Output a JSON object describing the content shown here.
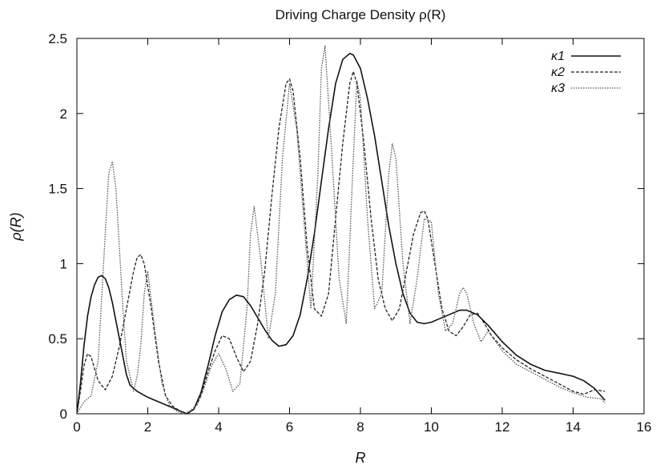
{
  "chart_data": {
    "type": "line",
    "title": "Driving Charge Density ρ(R)",
    "xlabel": "R",
    "ylabel": "ρ(R)",
    "xlim": [
      0,
      16
    ],
    "ylim": [
      0,
      2.5
    ],
    "xticks": [
      "0",
      "2",
      "4",
      "6",
      "8",
      "10",
      "12",
      "14",
      "16"
    ],
    "yticks": [
      "0",
      "0.5",
      "1",
      "1.5",
      "2",
      "2.5"
    ],
    "grid": false,
    "legend_position": "top-right",
    "series": [
      {
        "name": "κ1",
        "style": "solid",
        "color": "#111111",
        "x": [
          0,
          0.1,
          0.2,
          0.3,
          0.4,
          0.5,
          0.6,
          0.7,
          0.8,
          0.9,
          1.0,
          1.1,
          1.2,
          1.3,
          1.4,
          1.5,
          1.7,
          2.0,
          2.3,
          2.6,
          2.9,
          3.1,
          3.3,
          3.5,
          3.7,
          3.9,
          4.1,
          4.3,
          4.5,
          4.7,
          4.9,
          5.1,
          5.3,
          5.5,
          5.7,
          5.9,
          6.1,
          6.3,
          6.5,
          6.7,
          6.9,
          7.1,
          7.3,
          7.5,
          7.7,
          7.8,
          8.0,
          8.2,
          8.4,
          8.6,
          8.8,
          9.0,
          9.2,
          9.4,
          9.6,
          9.8,
          10.0,
          10.2,
          10.5,
          10.8,
          11.0,
          11.3,
          11.6,
          12.0,
          12.4,
          12.8,
          13.2,
          13.6,
          14.0,
          14.3,
          14.6,
          14.9
        ],
        "y": [
          0,
          0.2,
          0.45,
          0.65,
          0.78,
          0.86,
          0.91,
          0.92,
          0.9,
          0.84,
          0.74,
          0.62,
          0.5,
          0.38,
          0.26,
          0.19,
          0.15,
          0.11,
          0.08,
          0.05,
          0.02,
          0.0,
          0.03,
          0.14,
          0.32,
          0.52,
          0.68,
          0.76,
          0.79,
          0.78,
          0.72,
          0.64,
          0.56,
          0.49,
          0.45,
          0.46,
          0.52,
          0.66,
          0.9,
          1.2,
          1.55,
          1.9,
          2.2,
          2.36,
          2.4,
          2.39,
          2.3,
          2.1,
          1.85,
          1.55,
          1.25,
          1.0,
          0.8,
          0.67,
          0.61,
          0.6,
          0.61,
          0.63,
          0.66,
          0.69,
          0.69,
          0.66,
          0.59,
          0.48,
          0.39,
          0.33,
          0.29,
          0.27,
          0.25,
          0.22,
          0.17,
          0.09
        ]
      },
      {
        "name": "κ2",
        "style": "dashed",
        "color": "#222222",
        "x": [
          0,
          0.1,
          0.2,
          0.3,
          0.4,
          0.6,
          0.8,
          1.0,
          1.2,
          1.4,
          1.6,
          1.7,
          1.8,
          1.9,
          2.1,
          2.3,
          2.5,
          2.7,
          2.9,
          3.1,
          3.3,
          3.5,
          3.7,
          3.9,
          4.1,
          4.3,
          4.5,
          4.7,
          4.9,
          5.1,
          5.3,
          5.5,
          5.7,
          5.9,
          6.0,
          6.1,
          6.3,
          6.5,
          6.7,
          6.9,
          7.1,
          7.3,
          7.5,
          7.7,
          7.8,
          7.9,
          8.1,
          8.3,
          8.5,
          8.7,
          8.9,
          9.1,
          9.3,
          9.5,
          9.7,
          9.8,
          9.9,
          10.1,
          10.3,
          10.5,
          10.7,
          10.9,
          11.1,
          11.3,
          11.5,
          11.7,
          12.0,
          12.4,
          12.8,
          13.2,
          13.6,
          14.0,
          14.3,
          14.6,
          14.9
        ],
        "y": [
          0,
          0.15,
          0.32,
          0.4,
          0.38,
          0.22,
          0.16,
          0.25,
          0.45,
          0.7,
          0.95,
          1.04,
          1.06,
          1.0,
          0.7,
          0.35,
          0.12,
          0.05,
          0.02,
          0.0,
          0.03,
          0.12,
          0.28,
          0.42,
          0.52,
          0.5,
          0.38,
          0.28,
          0.35,
          0.6,
          0.95,
          1.45,
          1.9,
          2.2,
          2.23,
          2.15,
          1.7,
          1.1,
          0.7,
          0.65,
          0.8,
          1.3,
          1.8,
          2.2,
          2.28,
          2.2,
          1.8,
          1.3,
          0.9,
          0.7,
          0.62,
          0.7,
          0.95,
          1.2,
          1.34,
          1.35,
          1.3,
          1.0,
          0.7,
          0.55,
          0.52,
          0.58,
          0.66,
          0.67,
          0.6,
          0.52,
          0.44,
          0.36,
          0.3,
          0.25,
          0.2,
          0.15,
          0.13,
          0.16,
          0.15
        ]
      },
      {
        "name": "κ3",
        "style": "dotted",
        "color": "#555555",
        "x": [
          0,
          0.2,
          0.4,
          0.6,
          0.8,
          0.9,
          1.0,
          1.1,
          1.2,
          1.3,
          1.4,
          1.6,
          1.7,
          1.8,
          1.9,
          2.0,
          2.2,
          2.4,
          2.6,
          2.8,
          3.0,
          3.2,
          3.4,
          3.6,
          3.8,
          4.0,
          4.2,
          4.4,
          4.6,
          4.8,
          4.9,
          5.0,
          5.2,
          5.4,
          5.6,
          5.8,
          6.0,
          6.2,
          6.4,
          6.6,
          6.8,
          6.9,
          7.0,
          7.2,
          7.4,
          7.6,
          7.8,
          7.9,
          8.0,
          8.2,
          8.4,
          8.6,
          8.8,
          8.9,
          9.0,
          9.2,
          9.4,
          9.6,
          9.8,
          10.0,
          10.2,
          10.4,
          10.6,
          10.8,
          10.9,
          11.0,
          11.2,
          11.4,
          11.6,
          12.0,
          12.4,
          12.8,
          13.2,
          13.6,
          14.0,
          14.4,
          14.8,
          14.9
        ],
        "y": [
          0,
          0.08,
          0.12,
          0.35,
          1.2,
          1.6,
          1.68,
          1.5,
          1.1,
          0.7,
          0.35,
          0.15,
          0.25,
          0.45,
          0.8,
          0.95,
          0.55,
          0.2,
          0.06,
          0.02,
          0.0,
          0.02,
          0.06,
          0.18,
          0.32,
          0.4,
          0.3,
          0.15,
          0.2,
          0.7,
          1.2,
          1.38,
          1.0,
          0.5,
          0.8,
          1.7,
          2.2,
          1.9,
          1.3,
          0.7,
          1.6,
          2.3,
          2.45,
          1.7,
          0.9,
          0.6,
          1.7,
          2.22,
          2.1,
          1.3,
          0.7,
          0.8,
          1.6,
          1.8,
          1.7,
          1.0,
          0.6,
          0.9,
          1.3,
          1.28,
          0.8,
          0.55,
          0.6,
          0.8,
          0.84,
          0.8,
          0.6,
          0.48,
          0.55,
          0.42,
          0.33,
          0.28,
          0.23,
          0.18,
          0.14,
          0.11,
          0.1,
          0.07
        ]
      }
    ]
  }
}
